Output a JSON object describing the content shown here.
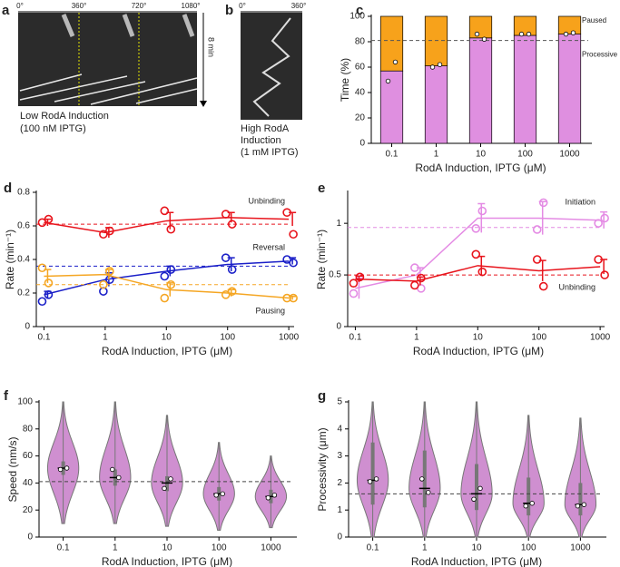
{
  "images": [
    {
      "panel": "a",
      "ticks": [
        "0°",
        "360°",
        "720°",
        "1080°"
      ],
      "scale": "8 min",
      "caption": [
        "Low RodA Induction",
        "(100 nM IPTG)"
      ]
    },
    {
      "panel": "b",
      "ticks": [
        "0°",
        "360°"
      ],
      "caption": [
        "High RodA",
        "Induction",
        "(1 mM IPTG)"
      ]
    }
  ],
  "chart_data": [
    {
      "panel": "c",
      "type": "stacked_bar",
      "ylabel": "Time (%)",
      "xlabel": "RodA Induction, IPTG (μM)",
      "categories": [
        "0.1",
        "1",
        "10",
        "100",
        "1000"
      ],
      "series": [
        {
          "name": "Processive",
          "color": "#df8fe0",
          "values": [
            57,
            61,
            83,
            85,
            86
          ]
        },
        {
          "name": "Paused",
          "color": "#f7a21b",
          "values": [
            43,
            39,
            17,
            15,
            14
          ]
        }
      ],
      "points": [
        [
          49,
          64
        ],
        [
          60,
          62
        ],
        [
          86,
          82
        ],
        [
          86,
          86
        ],
        [
          86,
          87
        ]
      ],
      "hline": 81,
      "ylim": [
        0,
        100
      ],
      "yticks": [
        0,
        20,
        40,
        60,
        80,
        100
      ]
    },
    {
      "panel": "d",
      "type": "line",
      "ylabel": "Rate (min⁻¹)",
      "xlabel": "RodA Induction, IPTG (μM)",
      "x": [
        0.1,
        1,
        10,
        100,
        1000
      ],
      "xlog": true,
      "xlim": [
        0.07,
        1500
      ],
      "xticks": [
        0.1,
        1,
        10,
        100,
        1000
      ],
      "ylim": [
        0,
        0.8
      ],
      "yticks": [
        0,
        0.2,
        0.4,
        0.6,
        0.8
      ],
      "series": [
        {
          "name": "Unbinding",
          "color": "#e8141c",
          "values": [
            0.62,
            0.56,
            0.63,
            0.65,
            0.64
          ],
          "errors": [
            0.02,
            0.03,
            0.05,
            0.03,
            0.04
          ],
          "points": [
            [
              0.62,
              0.64
            ],
            [
              0.55,
              0.57
            ],
            [
              0.69,
              0.58
            ],
            [
              0.67,
              0.61
            ],
            [
              0.68,
              0.55
            ]
          ],
          "hline": 0.61
        },
        {
          "name": "Reversal",
          "color": "#1a1fc8",
          "values": [
            0.19,
            0.28,
            0.33,
            0.37,
            0.39
          ],
          "errors": [
            0.02,
            0.04,
            0.03,
            0.04,
            0.02
          ],
          "points": [
            [
              0.15,
              0.19
            ],
            [
              0.21,
              0.28
            ],
            [
              0.3,
              0.34
            ],
            [
              0.41,
              0.34
            ],
            [
              0.4,
              0.38
            ]
          ],
          "hline": 0.36
        },
        {
          "name": "Pausing",
          "color": "#f5a623",
          "values": [
            0.3,
            0.31,
            0.22,
            0.2,
            0.17
          ],
          "errors": [
            0.04,
            0.03,
            0.04,
            0.02,
            0.01
          ],
          "points": [
            [
              0.35,
              0.26
            ],
            [
              0.25,
              0.33
            ],
            [
              0.17,
              0.25
            ],
            [
              0.19,
              0.21
            ],
            [
              0.17,
              0.17
            ]
          ],
          "hline": 0.25
        }
      ]
    },
    {
      "panel": "e",
      "type": "line",
      "ylabel": "Rate (min⁻¹)",
      "xlabel": "RodA Induction, IPTG (μM)",
      "x": [
        0.1,
        1,
        10,
        100,
        1000
      ],
      "xlog": true,
      "xlim": [
        0.07,
        1500
      ],
      "xticks": [
        0.1,
        1,
        10,
        100,
        1000
      ],
      "ylim": [
        0,
        1.3
      ],
      "yticks": [
        0,
        0.5,
        1
      ],
      "series": [
        {
          "name": "Initiation",
          "color": "#e48be4",
          "values": [
            0.37,
            0.5,
            1.05,
            1.05,
            1.03
          ],
          "errors": [
            0.1,
            0.07,
            0.14,
            0.16,
            0.08
          ],
          "points": [
            [
              0.32,
              0.48
            ],
            [
              0.57,
              0.37
            ],
            [
              0.95,
              1.12
            ],
            [
              0.94,
              1.2
            ],
            [
              1.0,
              1.05
            ]
          ],
          "hline": 0.96
        },
        {
          "name": "Unbinding",
          "color": "#e8141c",
          "values": [
            0.46,
            0.44,
            0.59,
            0.54,
            0.58
          ],
          "errors": [
            0.03,
            0.04,
            0.09,
            0.1,
            0.07
          ],
          "points": [
            [
              0.42,
              0.48
            ],
            [
              0.4,
              0.47
            ],
            [
              0.7,
              0.53
            ],
            [
              0.65,
              0.39
            ],
            [
              0.65,
              0.5
            ]
          ],
          "hline": 0.5
        }
      ]
    },
    {
      "panel": "f",
      "type": "violin",
      "ylabel": "Speed (nm/s)",
      "xlabel": "RodA Induction, IPTG (μM)",
      "color": "#cf8fd0",
      "categories": [
        "0.1",
        "1",
        "10",
        "100",
        "1000"
      ],
      "values": [
        51,
        44,
        40,
        32,
        30
      ],
      "ranges": [
        [
          10,
          100
        ],
        [
          10,
          100
        ],
        [
          8,
          90
        ],
        [
          5,
          70
        ],
        [
          7,
          60
        ]
      ],
      "quartiles": [
        [
          46,
          56
        ],
        [
          38,
          50
        ],
        [
          34,
          45
        ],
        [
          27,
          37
        ],
        [
          25,
          35
        ]
      ],
      "points": [
        [
          50,
          51
        ],
        [
          50,
          44
        ],
        [
          36,
          43
        ],
        [
          31,
          32
        ],
        [
          29,
          31
        ]
      ],
      "hline": 41,
      "ylim": [
        0,
        100
      ],
      "yticks": [
        0,
        20,
        40,
        60,
        80,
        100
      ]
    },
    {
      "panel": "g",
      "type": "violin",
      "ylabel": "Processivity (μm)",
      "xlabel": "RodA Induction, IPTG (μM)",
      "color": "#cf8fd0",
      "categories": [
        "0.1",
        "1",
        "10",
        "100",
        "1000"
      ],
      "values": [
        2.1,
        1.8,
        1.6,
        1.25,
        1.2
      ],
      "ranges": [
        [
          0,
          5
        ],
        [
          0,
          5
        ],
        [
          0,
          5
        ],
        [
          0,
          4.5
        ],
        [
          0,
          4.4
        ]
      ],
      "quartiles": [
        [
          1.2,
          3.5
        ],
        [
          1.1,
          3.2
        ],
        [
          1.0,
          2.7
        ],
        [
          0.8,
          2.2
        ],
        [
          0.8,
          2.0
        ]
      ],
      "points": [
        [
          2.05,
          2.15
        ],
        [
          2.15,
          1.65
        ],
        [
          1.4,
          1.8
        ],
        [
          1.15,
          1.25
        ],
        [
          1.15,
          1.2
        ]
      ],
      "hline": 1.6,
      "ylim": [
        0,
        5
      ],
      "yticks": [
        0,
        1,
        2,
        3,
        4,
        5
      ]
    }
  ]
}
